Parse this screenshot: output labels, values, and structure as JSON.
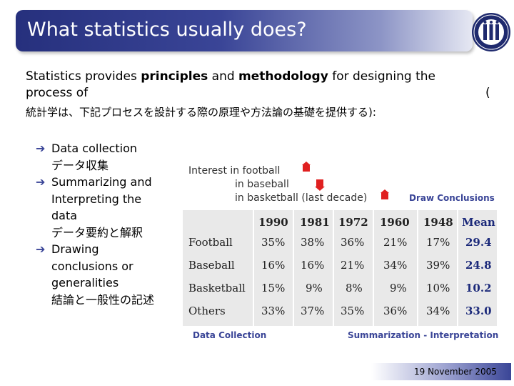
{
  "slide": {
    "title": "What statistics usually does?",
    "intro": {
      "part1": "Statistics provides ",
      "bold1": "principles",
      "part2": " and ",
      "bold2": "methodology",
      "part3": " for designing the process of",
      "paren": "(",
      "ja": "統計学は、下記プロセスを設計する際の原理や方法論の基礎を提供する):"
    },
    "bullets": [
      {
        "en": "Data collection",
        "ja": "データ収集"
      },
      {
        "en": "Summarizing and Interpreting the data",
        "ja": "データ要約と解釈"
      },
      {
        "en": "Drawing conclusions or generalities",
        "ja": "結論と一般性の記述"
      }
    ],
    "arrow_glyph": "➔",
    "footer_date": "19 November 2005"
  },
  "figure": {
    "legend": {
      "interest": "Interest",
      "row1": "in football",
      "row2": "in baseball",
      "row3": "in basketball (last decade)"
    },
    "draw_conclusions": "Draw Conclusions",
    "data_collection": "Data Collection",
    "summarization": "Summarization - Interpretation",
    "table": {
      "headers": [
        "1990",
        "1981",
        "1972",
        "1960",
        "1948",
        "Mean"
      ],
      "rows": [
        {
          "label": "Football",
          "values": [
            "35%",
            "38%",
            "36%",
            "21%",
            "17%"
          ],
          "mean": "29.4"
        },
        {
          "label": "Baseball",
          "values": [
            "16%",
            "16%",
            "21%",
            "34%",
            "39%"
          ],
          "mean": "24.8"
        },
        {
          "label": "Basketball",
          "values": [
            "15%",
            "9%",
            "8%",
            "9%",
            "10%"
          ],
          "mean": "10.2"
        },
        {
          "label": "Others",
          "values": [
            "33%",
            "37%",
            "35%",
            "36%",
            "34%"
          ],
          "mean": "33.0"
        }
      ]
    }
  },
  "colors": {
    "title_bar": "#3a4597",
    "accent_text": "#3a4597",
    "flag": "#e02020"
  }
}
